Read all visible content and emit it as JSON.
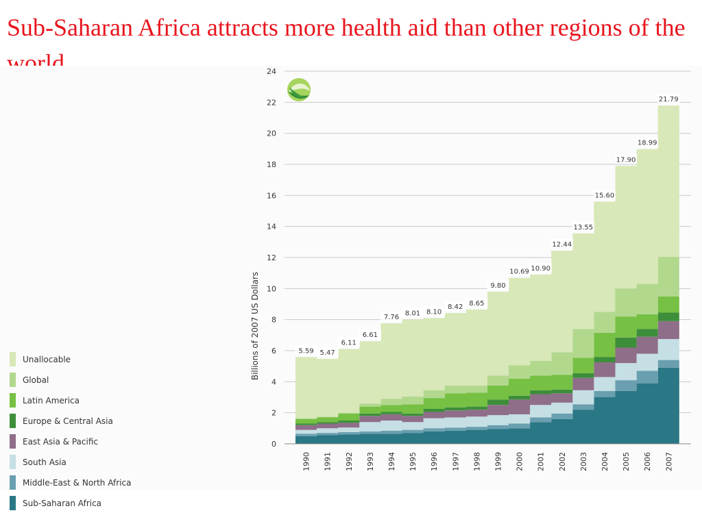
{
  "slide": {
    "title": "Sub-Saharan Africa attracts more health aid than other regions of the world"
  },
  "logo": {
    "icon": "leaf-globe-icon",
    "colors": [
      "#9acd52",
      "#2f8c3a"
    ]
  },
  "chart_data": {
    "type": "area",
    "stacked": true,
    "title": "",
    "xlabel": "",
    "ylabel": "Billions of 2007 US Dollars",
    "ylim": [
      0,
      24
    ],
    "yticks": [
      0,
      2,
      4,
      6,
      8,
      10,
      12,
      14,
      16,
      18,
      20,
      22,
      24
    ],
    "grid": true,
    "legend_position": "left",
    "x": [
      "1990",
      "1991",
      "1992",
      "1993",
      "1994",
      "1995",
      "1996",
      "1997",
      "1998",
      "1999",
      "2000",
      "2001",
      "2002",
      "2003",
      "2004",
      "2005",
      "2006",
      "2007"
    ],
    "totals": [
      5.59,
      5.47,
      6.11,
      6.61,
      7.76,
      8.01,
      8.1,
      8.42,
      8.65,
      9.8,
      10.69,
      10.9,
      12.44,
      13.55,
      15.6,
      17.9,
      18.99,
      21.79
    ],
    "total_labels": [
      "5.59",
      "5.47",
      "6.11",
      "6.61",
      "7.76",
      "8.01",
      "8.10",
      "8.42",
      "8.65",
      "9.80",
      "10.69",
      "10.90",
      "12.44",
      "13.55",
      "15.60",
      "17.90",
      "18.99",
      "21.79"
    ],
    "series": [
      {
        "name": "Sub-Saharan Africa",
        "color": "#2a7785",
        "values": [
          0.5,
          0.55,
          0.6,
          0.65,
          0.65,
          0.7,
          0.8,
          0.85,
          0.9,
          0.95,
          1.0,
          1.4,
          1.6,
          2.2,
          3.0,
          3.4,
          3.9,
          4.9
        ]
      },
      {
        "name": "Middle-East & North Africa",
        "color": "#6a9fb0",
        "values": [
          0.15,
          0.15,
          0.15,
          0.15,
          0.2,
          0.2,
          0.2,
          0.2,
          0.2,
          0.25,
          0.3,
          0.3,
          0.35,
          0.35,
          0.4,
          0.7,
          0.8,
          0.5
        ]
      },
      {
        "name": "South Asia",
        "color": "#c5dfe4",
        "values": [
          0.25,
          0.3,
          0.3,
          0.6,
          0.65,
          0.5,
          0.65,
          0.65,
          0.65,
          0.65,
          0.6,
          0.8,
          0.7,
          0.9,
          0.9,
          1.1,
          1.1,
          1.35
        ]
      },
      {
        "name": "East Asia & Pacific",
        "color": "#8f6e8a",
        "values": [
          0.3,
          0.3,
          0.3,
          0.4,
          0.4,
          0.4,
          0.4,
          0.45,
          0.45,
          0.65,
          0.95,
          0.7,
          0.6,
          0.8,
          0.95,
          1.0,
          1.1,
          1.15
        ]
      },
      {
        "name": "Europe & Central Asia",
        "color": "#3d8e3a",
        "values": [
          0.1,
          0.1,
          0.15,
          0.15,
          0.15,
          0.15,
          0.2,
          0.2,
          0.2,
          0.35,
          0.25,
          0.25,
          0.25,
          0.3,
          0.35,
          0.65,
          0.5,
          0.55
        ]
      },
      {
        "name": "Latin America",
        "color": "#76c043",
        "values": [
          0.3,
          0.3,
          0.45,
          0.45,
          0.45,
          0.6,
          0.7,
          0.9,
          0.9,
          0.9,
          1.1,
          0.95,
          0.95,
          1.0,
          1.55,
          1.35,
          0.95,
          1.05
        ]
      },
      {
        "name": "Global",
        "color": "#b2d88e",
        "values": [
          0.05,
          0.05,
          0.05,
          0.2,
          0.4,
          0.5,
          0.5,
          0.5,
          0.45,
          0.65,
          0.85,
          0.95,
          1.45,
          1.85,
          1.35,
          1.8,
          1.95,
          2.55
        ]
      },
      {
        "name": "Unallocable",
        "color": "#d8e8b8",
        "values": [
          3.94,
          3.72,
          4.11,
          4.01,
          4.86,
          4.96,
          4.65,
          4.67,
          4.9,
          5.4,
          5.64,
          5.55,
          6.54,
          6.15,
          7.1,
          7.9,
          8.69,
          9.74
        ]
      }
    ]
  }
}
